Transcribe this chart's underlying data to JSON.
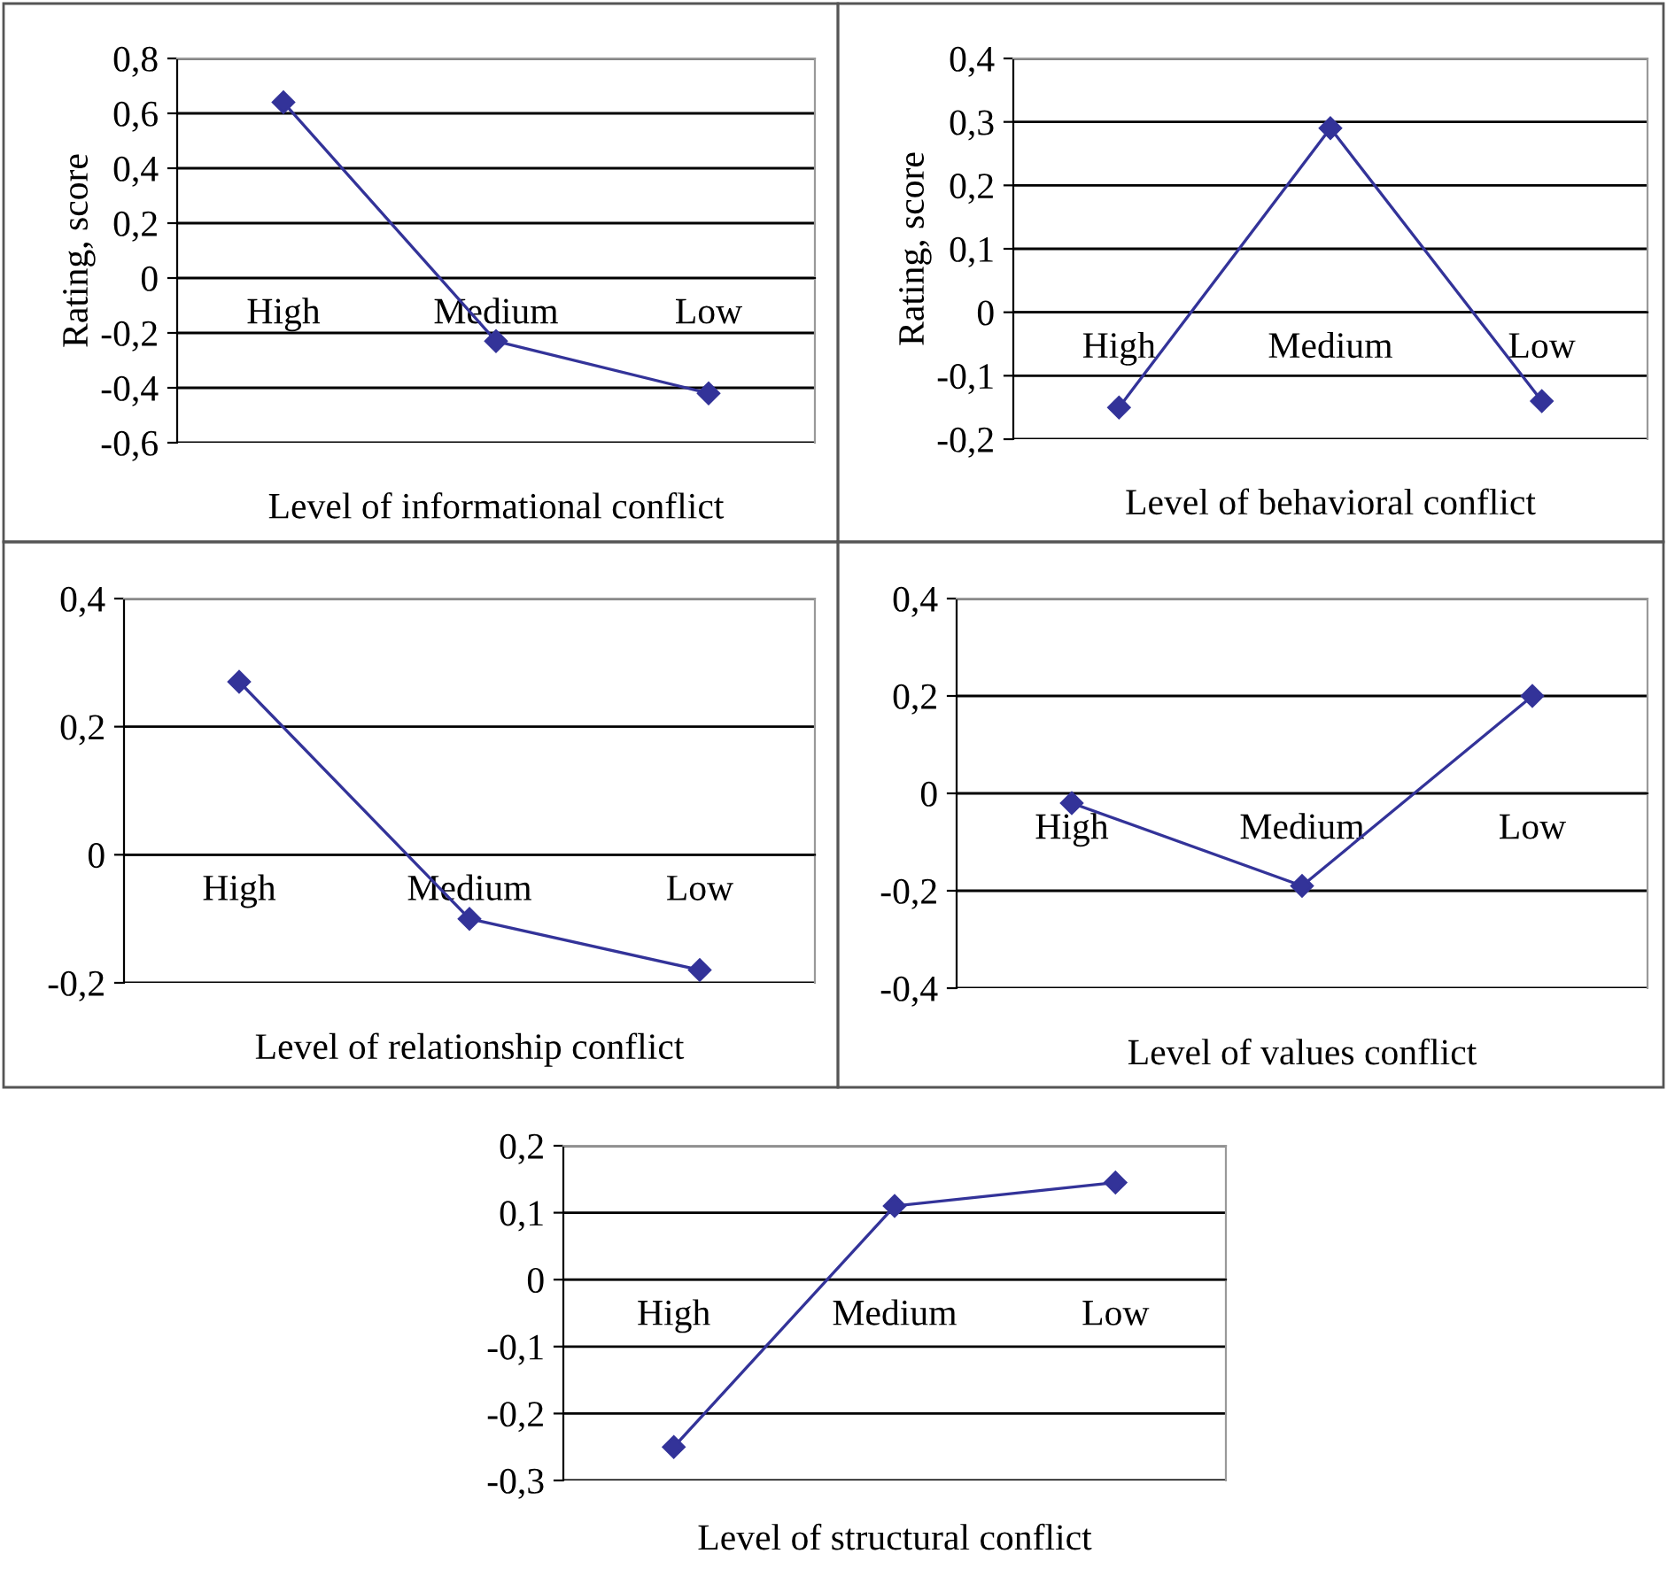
{
  "chart_data": [
    {
      "type": "line",
      "xlabel": "Level of informational conflict",
      "ylabel": "Rating, score",
      "categories": [
        "High",
        "Medium",
        "Low"
      ],
      "series": [
        {
          "color": "#333399",
          "values": [
            0.64,
            -0.23,
            -0.42
          ]
        }
      ],
      "ylim": [
        -0.6,
        0.8
      ],
      "yticks": [
        {
          "value": -0.6,
          "label": "-0,6"
        },
        {
          "value": -0.4,
          "label": "-0,4"
        },
        {
          "value": -0.2,
          "label": "-0,2"
        },
        0,
        {
          "value": 0.2,
          "label": "0,2"
        },
        {
          "value": 0.4,
          "label": "0,4"
        },
        {
          "value": 0.6,
          "label": "0,6"
        },
        {
          "value": 0.8,
          "label": "0,8"
        }
      ],
      "grid": "y",
      "legend": false,
      "marker": "diamond",
      "line_style": "solid"
    },
    {
      "type": "line",
      "xlabel": "Level of behavioral conflict",
      "ylabel": "Rating, score",
      "categories": [
        "High",
        "Medium",
        "Low"
      ],
      "series": [
        {
          "color": "#333399",
          "values": [
            -0.15,
            0.29,
            -0.14
          ]
        }
      ],
      "ylim": [
        -0.2,
        0.4
      ],
      "yticks": [
        {
          "value": -0.2,
          "label": "-0,2"
        },
        {
          "value": -0.1,
          "label": "-0,1"
        },
        0,
        {
          "value": 0.1,
          "label": "0,1"
        },
        {
          "value": 0.2,
          "label": "0,2"
        },
        {
          "value": 0.3,
          "label": "0,3"
        },
        {
          "value": 0.4,
          "label": "0,4"
        }
      ],
      "grid": "y",
      "legend": false,
      "marker": "diamond",
      "line_style": "solid"
    },
    {
      "type": "line",
      "xlabel": "Level of relationship conflict",
      "categories": [
        "High",
        "Medium",
        "Low"
      ],
      "series": [
        {
          "color": "#333399",
          "values": [
            0.27,
            -0.1,
            -0.18
          ]
        }
      ],
      "ylim": [
        -0.2,
        0.4
      ],
      "yticks": [
        {
          "value": -0.2,
          "label": "-0,2"
        },
        0,
        {
          "value": 0.2,
          "label": "0,2"
        },
        {
          "value": 0.4,
          "label": "0,4"
        }
      ],
      "grid": "y",
      "legend": false,
      "marker": "diamond",
      "line_style": "solid"
    },
    {
      "type": "line",
      "xlabel": "Level of values conflict",
      "categories": [
        "High",
        "Medium",
        "Low"
      ],
      "series": [
        {
          "color": "#333399",
          "values": [
            -0.02,
            -0.19,
            0.2
          ]
        }
      ],
      "ylim": [
        -0.4,
        0.4
      ],
      "yticks": [
        {
          "value": -0.4,
          "label": "-0,4"
        },
        {
          "value": -0.2,
          "label": "-0,2"
        },
        0,
        {
          "value": 0.2,
          "label": "0,2"
        },
        {
          "value": 0.4,
          "label": "0,4"
        }
      ],
      "grid": "y",
      "legend": false,
      "marker": "diamond",
      "line_style": "solid"
    },
    {
      "type": "line",
      "xlabel": "Level of structural conflict",
      "categories": [
        "High",
        "Medium",
        "Low"
      ],
      "series": [
        {
          "color": "#333399",
          "values": [
            -0.25,
            0.11,
            0.145
          ]
        }
      ],
      "ylim": [
        -0.3,
        0.2
      ],
      "yticks": [
        {
          "value": -0.3,
          "label": "-0,3"
        },
        {
          "value": -0.2,
          "label": "-0,2"
        },
        {
          "value": -0.1,
          "label": "-0,1"
        },
        0,
        {
          "value": 0.1,
          "label": "0,1"
        },
        {
          "value": 0.2,
          "label": "0,2"
        }
      ],
      "grid": "y",
      "legend": false,
      "marker": "diamond",
      "line_style": "solid"
    }
  ]
}
